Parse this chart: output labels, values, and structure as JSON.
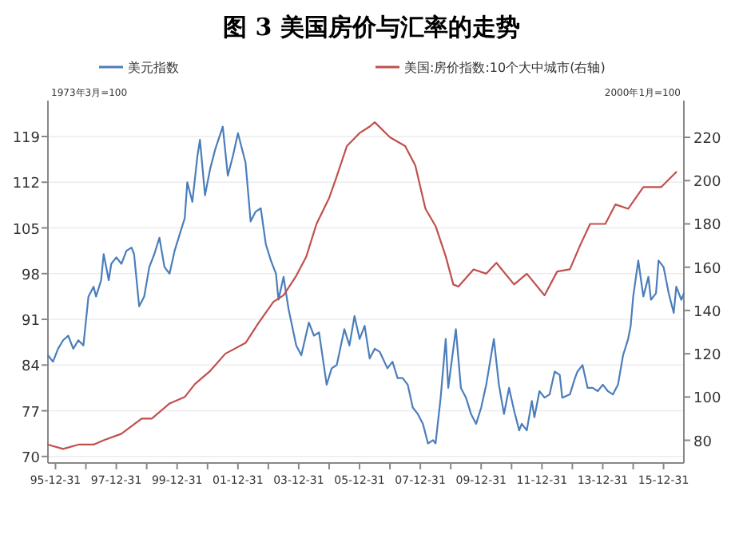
{
  "chart_data": {
    "type": "line",
    "title": "图 3 美国房价与汇率的走势",
    "ylabel": "1973年3月=100",
    "y2label": "2000年1月=100",
    "legend": "top",
    "grid": "y",
    "marker": "none",
    "line_style": "solid",
    "xlim": [
      "1995-10",
      "2016-09"
    ],
    "xticks": [
      {
        "value": "1995-12-31",
        "label": "95-12-31"
      },
      {
        "value": "1996-12-31",
        "label": null
      },
      {
        "value": "1997-12-31",
        "label": "97-12-31"
      },
      {
        "value": "1998-12-31",
        "label": null
      },
      {
        "value": "1999-12-31",
        "label": "99-12-31"
      },
      {
        "value": "2000-12-31",
        "label": null
      },
      {
        "value": "2001-12-31",
        "label": "01-12-31"
      },
      {
        "value": "2002-12-31",
        "label": null
      },
      {
        "value": "2003-12-31",
        "label": "03-12-31"
      },
      {
        "value": "2004-12-31",
        "label": null
      },
      {
        "value": "2005-12-31",
        "label": "05-12-31"
      },
      {
        "value": "2006-12-31",
        "label": null
      },
      {
        "value": "2007-12-31",
        "label": "07-12-31"
      },
      {
        "value": "2008-12-31",
        "label": null
      },
      {
        "value": "2009-12-31",
        "label": "09-12-31"
      },
      {
        "value": "2010-12-31",
        "label": null
      },
      {
        "value": "2011-12-31",
        "label": "11-12-31"
      },
      {
        "value": "2012-12-31",
        "label": null
      },
      {
        "value": "2013-12-31",
        "label": "13-12-31"
      },
      {
        "value": "2014-12-31",
        "label": null
      },
      {
        "value": "2015-12-31",
        "label": "15-12-31"
      }
    ],
    "ylim": [
      69,
      124.5
    ],
    "yticks": [
      70,
      77,
      84,
      91,
      98,
      105,
      112,
      119
    ],
    "y2lim": [
      69.5,
      237
    ],
    "y2ticks": [
      80,
      100,
      120,
      140,
      160,
      180,
      200,
      220
    ],
    "series": [
      {
        "name": "美元指数",
        "color": "#4a7ebb",
        "x": [
          "1995-10",
          "1995-12",
          "1996-02",
          "1996-04",
          "1996-06",
          "1996-08",
          "1996-10",
          "1996-12",
          "1997-02",
          "1997-04",
          "1997-05",
          "1997-07",
          "1997-08",
          "1997-10",
          "1997-11",
          "1998-01",
          "1998-03",
          "1998-05",
          "1998-07",
          "1998-08",
          "1998-10",
          "1998-12",
          "1999-02",
          "1999-04",
          "1999-06",
          "1999-08",
          "1999-10",
          "1999-12",
          "2000-02",
          "2000-04",
          "2000-05",
          "2000-07",
          "2000-09",
          "2000-10",
          "2000-12",
          "2001-02",
          "2001-04",
          "2001-07",
          "2001-09",
          "2001-11",
          "2002-01",
          "2002-02",
          "2002-04",
          "2002-06",
          "2002-08",
          "2002-10",
          "2002-12",
          "2003-02",
          "2003-04",
          "2003-05",
          "2003-07",
          "2003-09",
          "2003-12",
          "2004-02",
          "2004-05",
          "2004-07",
          "2004-09",
          "2004-12",
          "2005-02",
          "2005-04",
          "2005-07",
          "2005-09",
          "2005-11",
          "2006-01",
          "2006-03",
          "2006-05",
          "2006-07",
          "2006-09",
          "2006-12",
          "2007-02",
          "2007-04",
          "2007-06",
          "2007-08",
          "2007-10",
          "2007-12",
          "2008-02",
          "2008-04",
          "2008-06",
          "2008-07",
          "2008-09",
          "2008-11",
          "2008-12",
          "2009-03",
          "2009-05",
          "2009-07",
          "2009-09",
          "2009-11",
          "2010-01",
          "2010-03",
          "2010-06",
          "2010-08",
          "2010-10",
          "2010-12",
          "2011-02",
          "2011-04",
          "2011-05",
          "2011-07",
          "2011-09",
          "2011-10",
          "2011-12",
          "2012-02",
          "2012-04",
          "2012-06",
          "2012-08",
          "2012-09",
          "2012-12",
          "2013-02",
          "2013-03",
          "2013-05",
          "2013-07",
          "2013-09",
          "2013-11",
          "2014-01",
          "2014-03",
          "2014-05",
          "2014-07",
          "2014-09",
          "2014-11",
          "2014-12",
          "2015-01",
          "2015-03",
          "2015-05",
          "2015-07",
          "2015-08",
          "2015-10",
          "2015-11",
          "2016-01",
          "2016-03",
          "2016-05",
          "2016-06",
          "2016-08",
          "2016-09"
        ],
        "values": [
          85.5,
          84.5,
          86.5,
          87.8,
          88.5,
          86.5,
          87.8,
          87,
          94.5,
          96,
          94.5,
          97,
          101,
          97,
          99.5,
          100.5,
          99.5,
          101.5,
          102,
          101,
          93,
          94.5,
          99,
          101,
          103.5,
          99,
          98,
          101.5,
          104,
          106.5,
          112,
          109,
          116,
          118.5,
          110,
          114,
          117,
          120.5,
          113,
          116,
          119.5,
          118,
          115,
          106,
          107.5,
          108,
          102.5,
          100,
          98,
          94,
          97.5,
          92.5,
          87,
          85.5,
          90.5,
          88.5,
          89,
          81,
          83.5,
          84,
          89.5,
          87,
          91.5,
          88,
          90,
          85,
          86.5,
          86,
          83.5,
          84.5,
          82,
          82,
          81,
          77.5,
          76.5,
          75,
          72,
          72.5,
          72,
          79,
          88,
          80.5,
          89.5,
          80.5,
          79,
          76.5,
          75,
          77.5,
          81,
          88,
          81,
          76.5,
          80.5,
          77,
          74,
          75,
          74,
          78.5,
          76,
          80,
          79,
          79.5,
          83,
          82.5,
          79,
          79.5,
          82,
          83,
          84,
          80.5,
          80.5,
          80,
          81,
          80,
          79.5,
          81,
          85.5,
          88,
          90,
          94.5,
          100,
          94.5,
          97.5,
          94,
          95,
          100,
          99,
          95,
          92,
          96,
          94,
          95
        ]
      },
      {
        "name": "美国:房价指数:10个大中城市(右轴)",
        "color": "#c0504d",
        "axis": "y2",
        "x": [
          "1995-10",
          "1996-04",
          "1996-10",
          "1997-04",
          "1997-08",
          "1998-03",
          "1998-11",
          "1999-03",
          "1999-10",
          "2000-04",
          "2000-08",
          "2001-02",
          "2001-08",
          "2002-04",
          "2002-09",
          "2003-03",
          "2003-07",
          "2003-12",
          "2004-04",
          "2004-08",
          "2005-01",
          "2005-04",
          "2005-08",
          "2006-01",
          "2006-05",
          "2006-07",
          "2007-01",
          "2007-07",
          "2007-11",
          "2008-03",
          "2008-07",
          "2008-11",
          "2009-02",
          "2009-04",
          "2009-10",
          "2010-03",
          "2010-07",
          "2011-02",
          "2011-07",
          "2012-02",
          "2012-07",
          "2012-12",
          "2013-04",
          "2013-08",
          "2014-02",
          "2014-06",
          "2014-11",
          "2015-05",
          "2015-12",
          "2016-06"
        ],
        "values": [
          78,
          76,
          78,
          78,
          80,
          83,
          90,
          90,
          97,
          100,
          106,
          112,
          120,
          125,
          134,
          144,
          147,
          156,
          165,
          180,
          192,
          202,
          216,
          222,
          225,
          227,
          220,
          216,
          207,
          187,
          179,
          165,
          152,
          151,
          159,
          157,
          162,
          152,
          157,
          147,
          158,
          159,
          170,
          180,
          180,
          189,
          187,
          197,
          197,
          204
        ]
      }
    ]
  }
}
